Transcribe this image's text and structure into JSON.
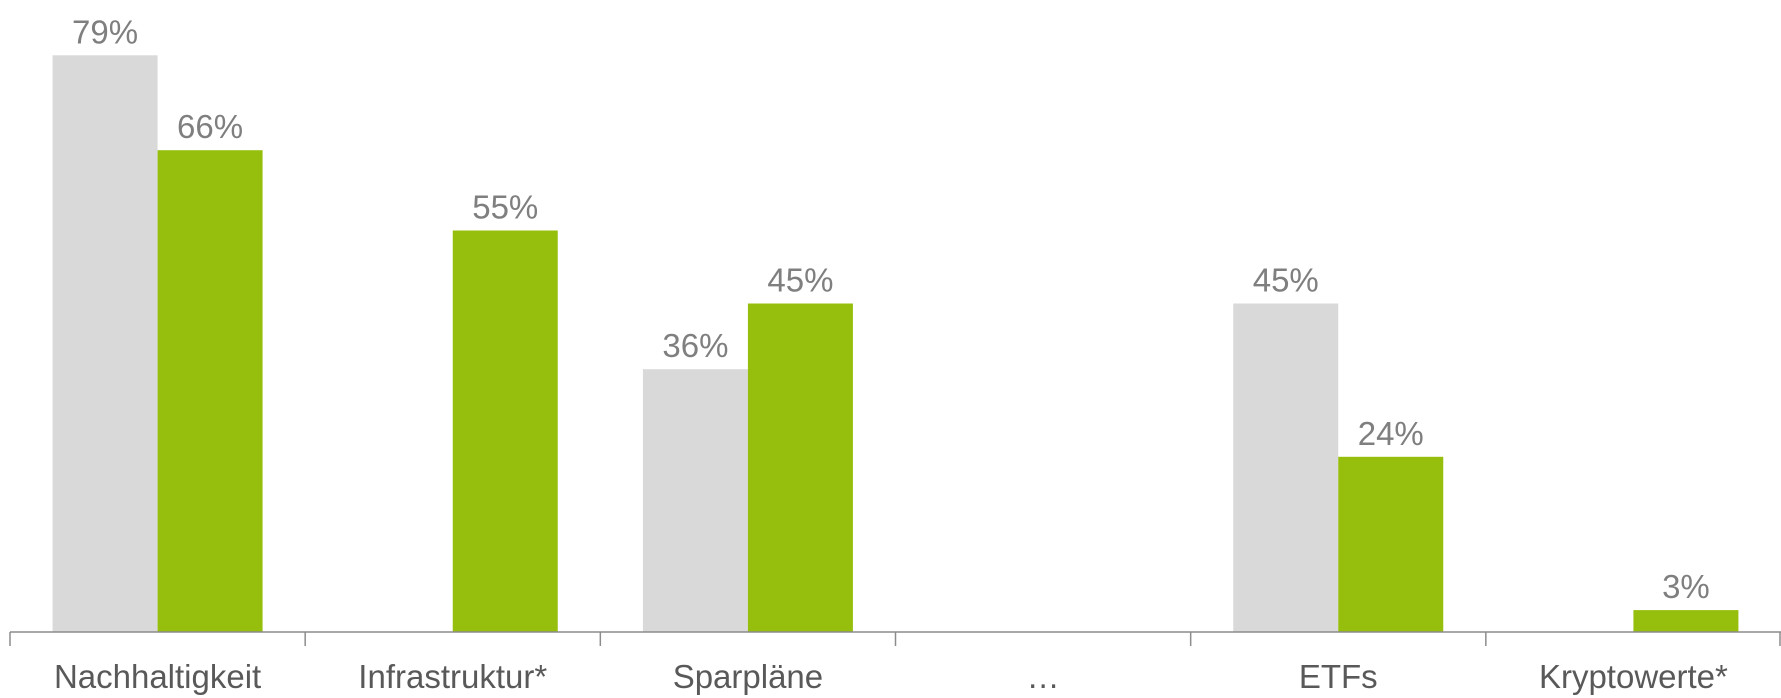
{
  "chart_data": {
    "type": "bar",
    "title": "",
    "xlabel": "",
    "ylabel": "",
    "ylim": [
      0,
      100
    ],
    "grid": false,
    "legend": "none",
    "categories": [
      "Nachhaltigkeit",
      "Infrastruktur*",
      "Sparpläne",
      "…",
      "ETFs",
      "Kryptowerte*"
    ],
    "series": [
      {
        "color": "#d9d9d9",
        "values": [
          79,
          null,
          36,
          null,
          45,
          null
        ],
        "labels": [
          "79%",
          "",
          "36%",
          "",
          "45%",
          ""
        ]
      },
      {
        "color": "#96bf0d",
        "values": [
          66,
          55,
          45,
          null,
          24,
          3
        ],
        "labels": [
          "66%",
          "55%",
          "45%",
          "",
          "24%",
          "3%"
        ]
      }
    ]
  }
}
